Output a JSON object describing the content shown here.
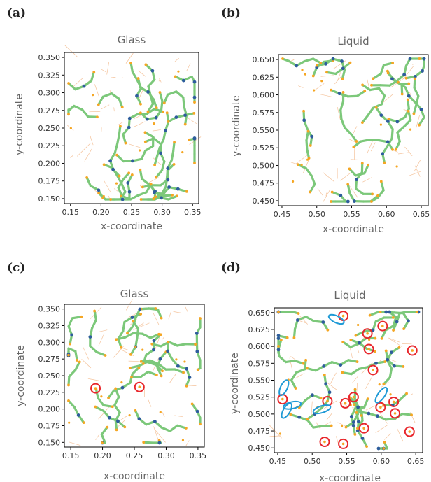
{
  "chart_data": [
    {
      "type": "scatter",
      "panel_label": "(a)",
      "title": "Glass",
      "xlabel": "x-coordinate",
      "ylabel": "y-coordinate",
      "xlim": [
        0.14,
        0.36
      ],
      "ylim": [
        0.143,
        0.357
      ],
      "xticks": [
        "0.15",
        "0.20",
        "0.25",
        "0.30",
        "0.35"
      ],
      "yticks": [
        "0.150",
        "0.175",
        "0.200",
        "0.225",
        "0.250",
        "0.275",
        "0.300",
        "0.325",
        "0.350"
      ],
      "grid": false,
      "markers": [],
      "colors": {
        "bond": "#7cc87a",
        "end_atom": "#f5a623",
        "junction_atom": "#2e5d9c",
        "weak_link": "#f4c29a"
      }
    },
    {
      "type": "scatter",
      "panel_label": "(b)",
      "title": "Liquid",
      "xlabel": "x-coordinate",
      "ylabel": "y-coordinate",
      "xlim": [
        0.445,
        0.66
      ],
      "ylim": [
        0.443,
        0.657
      ],
      "xticks": [
        "0.45",
        "0.50",
        "0.55",
        "0.60",
        "0.65"
      ],
      "yticks": [
        "0.450",
        "0.475",
        "0.500",
        "0.525",
        "0.550",
        "0.575",
        "0.600",
        "0.625",
        "0.650"
      ],
      "grid": false,
      "markers": [],
      "colors": {
        "bond": "#7cc87a",
        "end_atom": "#f5a623",
        "junction_atom": "#2e5d9c",
        "weak_link": "#f4c29a"
      }
    },
    {
      "type": "scatter",
      "panel_label": "(c)",
      "title": "Glass",
      "xlabel": "x-coordinate",
      "ylabel": "y-coordinate",
      "xlim": [
        0.14,
        0.36
      ],
      "ylim": [
        0.143,
        0.357
      ],
      "xticks": [
        "0.15",
        "0.20",
        "0.25",
        "0.30",
        "0.35"
      ],
      "yticks": [
        "0.150",
        "0.175",
        "0.200",
        "0.225",
        "0.250",
        "0.275",
        "0.300",
        "0.325",
        "0.350"
      ],
      "grid": false,
      "markers": [
        {
          "kind": "circle",
          "x": 0.189,
          "y": 0.231
        },
        {
          "kind": "circle",
          "x": 0.258,
          "y": 0.233
        }
      ],
      "colors": {
        "bond": "#7cc87a",
        "end_atom": "#f5a623",
        "junction_atom": "#2e5d9c",
        "weak_link": "#f4c29a",
        "circle": "#e8262b",
        "ellipse": "#1f9ad6"
      }
    },
    {
      "type": "scatter",
      "panel_label": "(d)",
      "title": "Liquid",
      "xlabel": "x-coordinate",
      "ylabel": "y-coordinate",
      "xlim": [
        0.445,
        0.66
      ],
      "ylim": [
        0.443,
        0.657
      ],
      "xticks": [
        "0.45",
        "0.50",
        "0.55",
        "0.60",
        "0.65"
      ],
      "yticks": [
        "0.450",
        "0.475",
        "0.500",
        "0.525",
        "0.550",
        "0.575",
        "0.600",
        "0.625",
        "0.650"
      ],
      "grid": false,
      "markers": [
        {
          "kind": "circle",
          "x": 0.545,
          "y": 0.645
        },
        {
          "kind": "circle",
          "x": 0.602,
          "y": 0.63
        },
        {
          "kind": "circle",
          "x": 0.58,
          "y": 0.619
        },
        {
          "kind": "circle",
          "x": 0.582,
          "y": 0.596
        },
        {
          "kind": "circle",
          "x": 0.645,
          "y": 0.594
        },
        {
          "kind": "circle",
          "x": 0.588,
          "y": 0.565
        },
        {
          "kind": "circle",
          "x": 0.457,
          "y": 0.522
        },
        {
          "kind": "circle",
          "x": 0.522,
          "y": 0.519
        },
        {
          "kind": "circle",
          "x": 0.56,
          "y": 0.525
        },
        {
          "kind": "circle",
          "x": 0.548,
          "y": 0.516
        },
        {
          "kind": "circle",
          "x": 0.599,
          "y": 0.51
        },
        {
          "kind": "circle",
          "x": 0.618,
          "y": 0.518
        },
        {
          "kind": "circle",
          "x": 0.62,
          "y": 0.501
        },
        {
          "kind": "circle",
          "x": 0.575,
          "y": 0.479
        },
        {
          "kind": "circle",
          "x": 0.641,
          "y": 0.474
        },
        {
          "kind": "circle",
          "x": 0.518,
          "y": 0.459
        },
        {
          "kind": "circle",
          "x": 0.545,
          "y": 0.456
        },
        {
          "kind": "ellipse",
          "x": 0.535,
          "y": 0.64,
          "rx": 0.012,
          "ry": 0.005,
          "angle": -25
        },
        {
          "kind": "ellipse",
          "x": 0.459,
          "y": 0.539,
          "rx": 0.012,
          "ry": 0.005,
          "angle": 65
        },
        {
          "kind": "ellipse",
          "x": 0.471,
          "y": 0.513,
          "rx": 0.013,
          "ry": 0.005,
          "angle": 12
        },
        {
          "kind": "ellipse",
          "x": 0.463,
          "y": 0.505,
          "rx": 0.012,
          "ry": 0.005,
          "angle": 60
        },
        {
          "kind": "ellipse",
          "x": 0.514,
          "y": 0.507,
          "rx": 0.013,
          "ry": 0.005,
          "angle": 18
        },
        {
          "kind": "ellipse",
          "x": 0.6,
          "y": 0.528,
          "rx": 0.013,
          "ry": 0.005,
          "angle": 55
        }
      ],
      "colors": {
        "bond": "#7cc87a",
        "end_atom": "#f5a623",
        "junction_atom": "#2e5d9c",
        "weak_link": "#f4c29a",
        "circle": "#e8262b",
        "ellipse": "#1f9ad6"
      }
    }
  ]
}
